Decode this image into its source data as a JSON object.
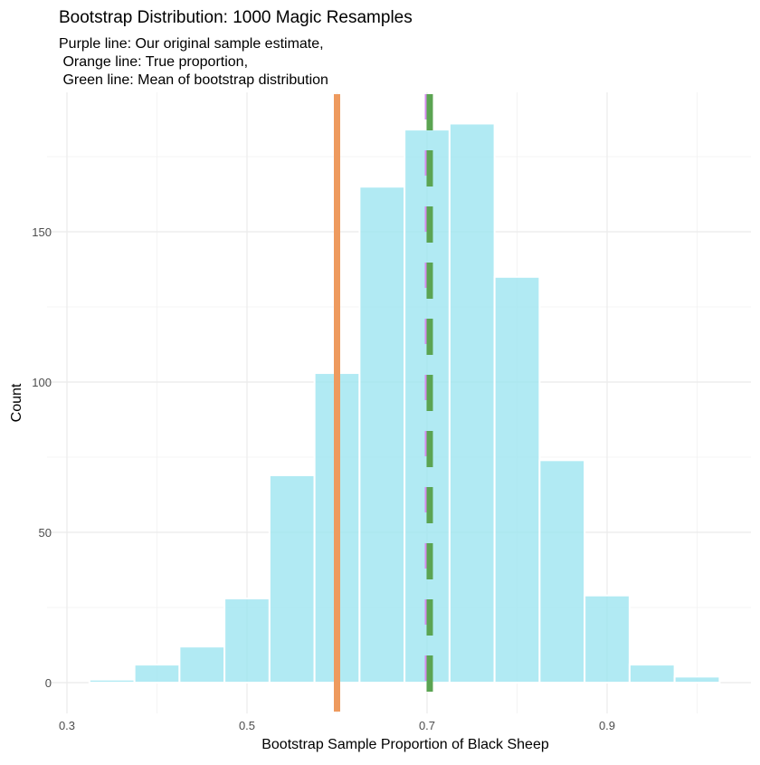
{
  "chart_data": {
    "type": "bar",
    "title": "Bootstrap Distribution: 1000 Magic Resamples",
    "subtitle_lines": [
      "Purple line: Our original sample estimate,",
      " Orange line: True proportion,",
      " Green line: Mean of bootstrap distribution"
    ],
    "xlabel": "Bootstrap Sample Proportion of Black Sheep",
    "ylabel": "Count",
    "bin_width": 0.05,
    "bin_centers": [
      0.35,
      0.4,
      0.45,
      0.5,
      0.55,
      0.6,
      0.65,
      0.7,
      0.75,
      0.8,
      0.85,
      0.9,
      0.95,
      1.0
    ],
    "values": [
      1,
      6,
      12,
      28,
      69,
      103,
      165,
      184,
      186,
      135,
      74,
      29,
      6,
      2
    ],
    "xlim": [
      0.278,
      1.06
    ],
    "ylim": [
      -10,
      196
    ],
    "x_ticks": [
      "0.3",
      "0.5",
      "0.7",
      "0.9"
    ],
    "y_ticks": [
      "0",
      "50",
      "100",
      "150"
    ],
    "grid": true,
    "bar_color": "#9EE5F0",
    "vlines": [
      {
        "label": "True proportion",
        "value": 0.6,
        "color": "#EE9A5E",
        "style": "solid"
      },
      {
        "label": "Our original sample estimate",
        "value": 0.7,
        "color": "#D58BEF",
        "style": "dashed"
      },
      {
        "label": "Mean of bootstrap distribution",
        "value": 0.703,
        "color": "#5BA452",
        "style": "dashed"
      }
    ]
  }
}
